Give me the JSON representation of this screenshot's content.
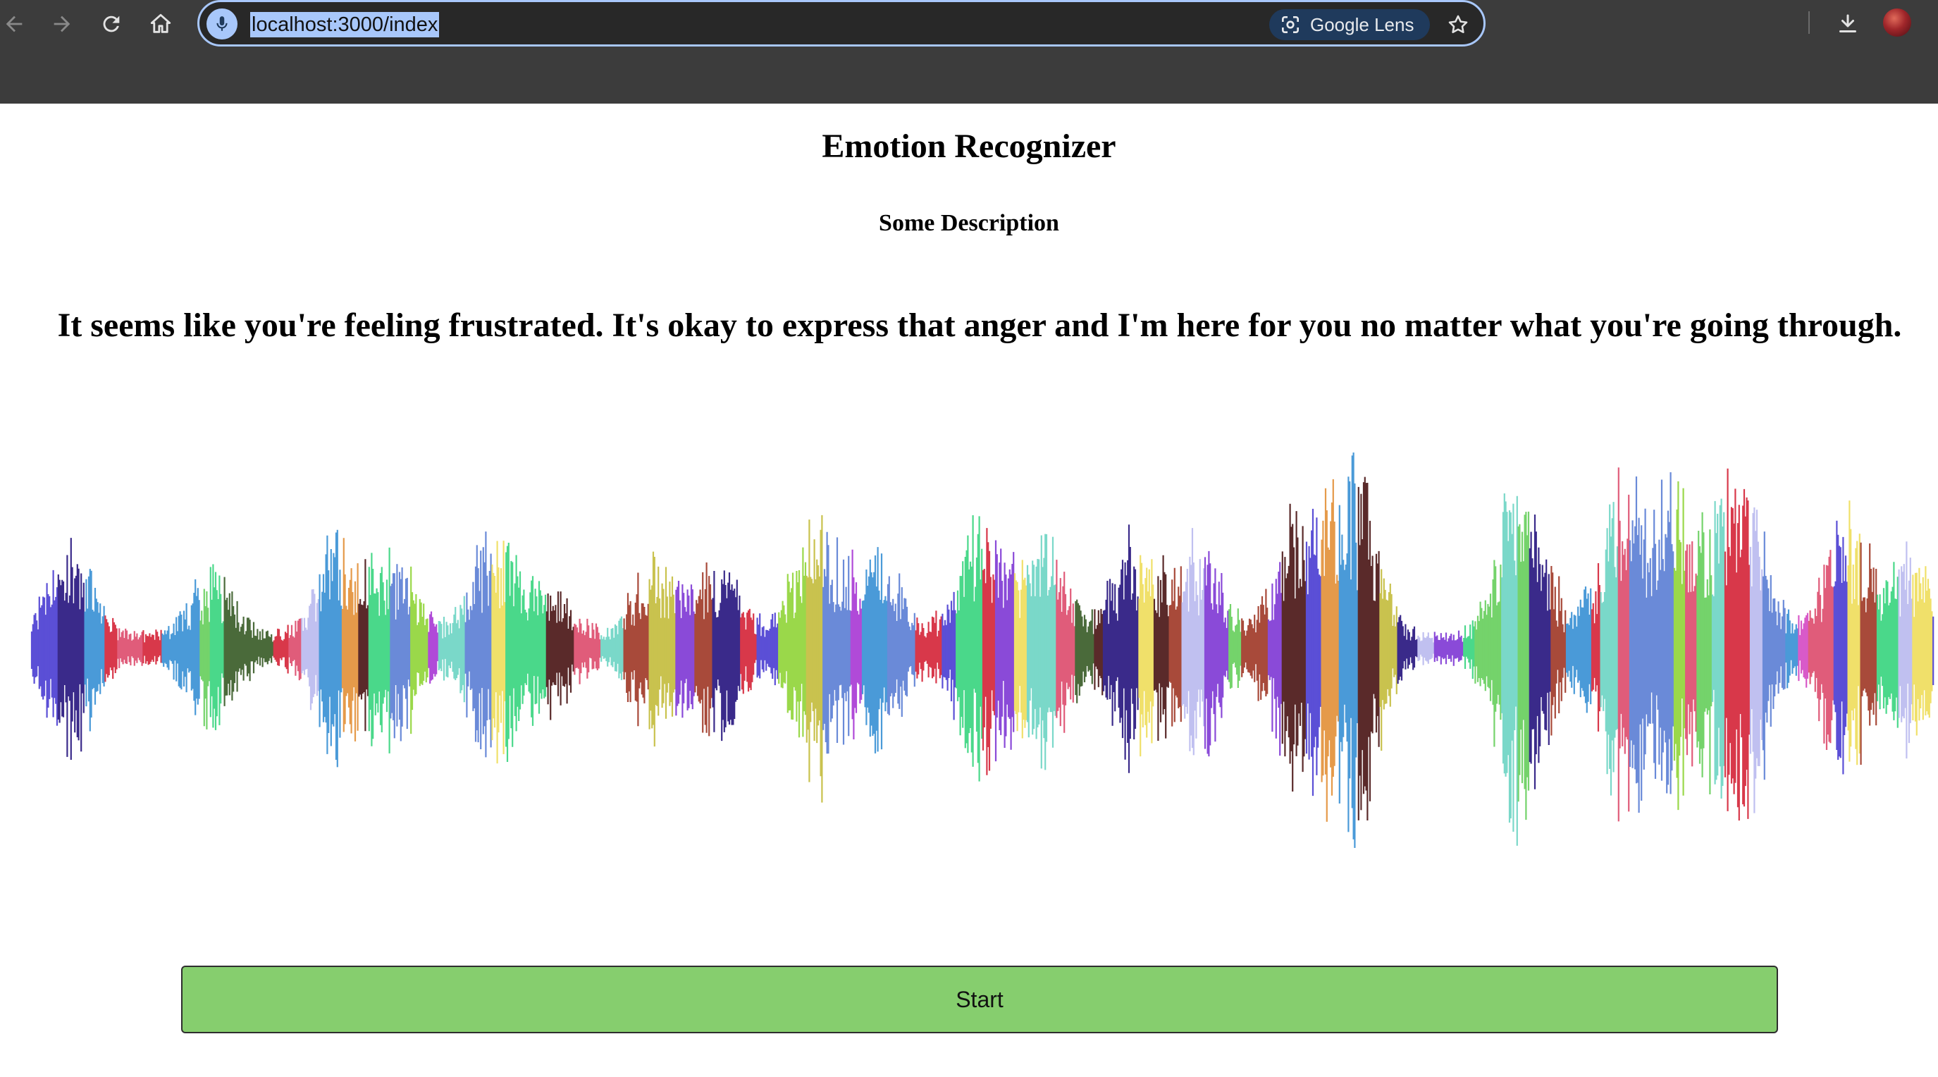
{
  "browser": {
    "url": "localhost:3000/index",
    "lens_label": "Google Lens",
    "icons": {
      "back": "arrow-left-icon",
      "forward": "arrow-right-icon",
      "reload": "reload-icon",
      "home": "home-icon",
      "mic": "microphone-icon",
      "lens": "google-lens-icon",
      "bookmark": "star-icon",
      "download": "download-icon"
    }
  },
  "page": {
    "title": "Emotion Recognizer",
    "description": "Some Description",
    "message": "It seems like you're feeling frustrated. It's okay to express that anger and I'm here for you no matter what you're going through.",
    "start_label": "Start"
  },
  "waveform": {
    "palette": [
      "#5b4fd6",
      "#e05c7a",
      "#74d36b",
      "#c9c24e",
      "#4a9ad8",
      "#b04ad8",
      "#e59a4a",
      "#7ad8c9",
      "#d8384a",
      "#3a2a8a",
      "#9ad84a",
      "#d85ac9",
      "#4a6a3a",
      "#a84a3a",
      "#6a8ad8",
      "#4ad88a",
      "#f0e06a",
      "#8a4ad8",
      "#5a2a2a",
      "#c0c0f0"
    ],
    "color_chrome": "#3c3c3c",
    "color_button": "#86ce6e",
    "color_accent": "#a8c7fa"
  }
}
